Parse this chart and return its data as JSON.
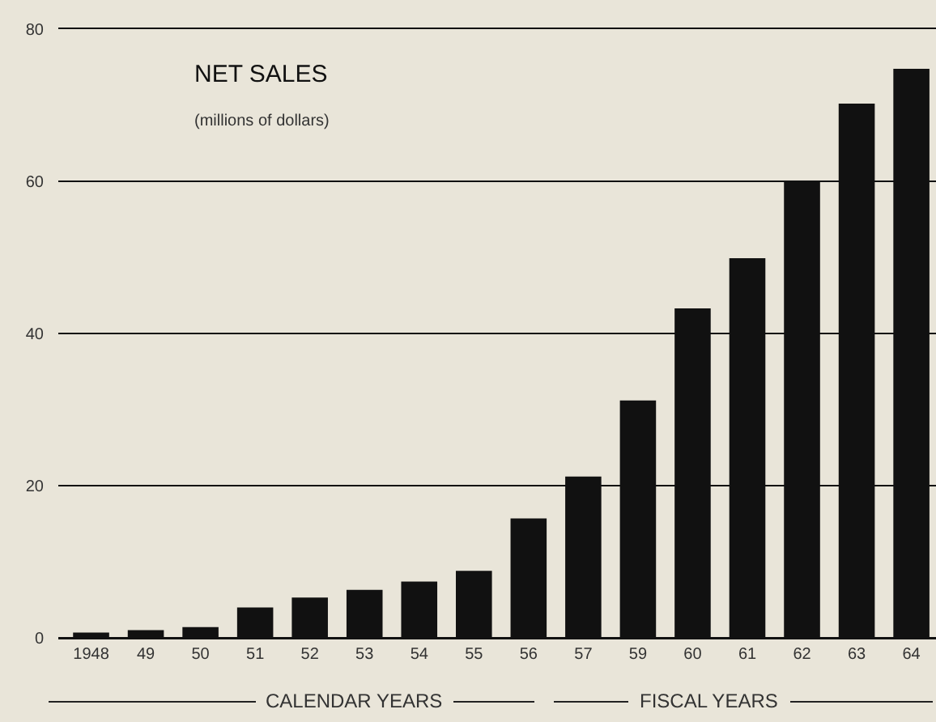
{
  "chart_data": {
    "type": "bar",
    "title": "NET SALES",
    "subtitle": "(millions of dollars)",
    "categories": [
      "1948",
      "49",
      "50",
      "51",
      "52",
      "53",
      "54",
      "55",
      "56",
      "57",
      "59",
      "60",
      "61",
      "62",
      "63",
      "64"
    ],
    "values": [
      0.7,
      1.0,
      1.4,
      4.0,
      5.3,
      6.3,
      7.4,
      8.8,
      15.7,
      21.2,
      31.2,
      43.3,
      49.9,
      59.9,
      70.2,
      74.8
    ],
    "color": "#111111",
    "ylim": [
      0,
      80
    ],
    "yticks": [
      0,
      20,
      40,
      60,
      80
    ],
    "grid": "y",
    "annotations": [
      "CALENDAR YEARS",
      "FISCAL YEARS"
    ]
  }
}
